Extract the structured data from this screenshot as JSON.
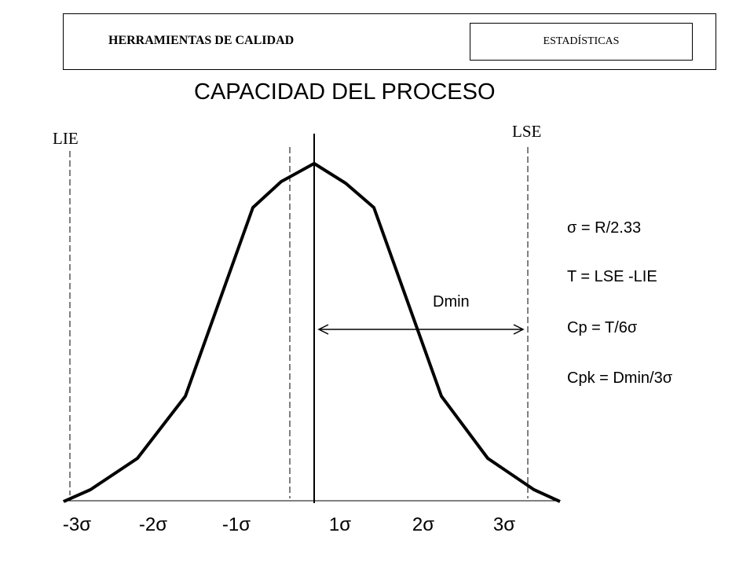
{
  "header": {
    "title": "HERRAMIENTAS  DE CALIDAD",
    "section": "ESTADÍSTICAS"
  },
  "main_title": "CAPACIDAD DEL PROCESO",
  "limits": {
    "lower_label": "LIE",
    "upper_label": "LSE"
  },
  "dmin_label": "Dmin",
  "formulas": [
    "σ = R/2.33",
    "T = LSE -LIE",
    "Cp = T/6σ",
    "Cpk = Dmin/3σ"
  ],
  "axis_ticks": [
    "-3σ",
    "-2σ",
    "-1σ",
    "1σ",
    "2σ",
    "3σ"
  ]
}
